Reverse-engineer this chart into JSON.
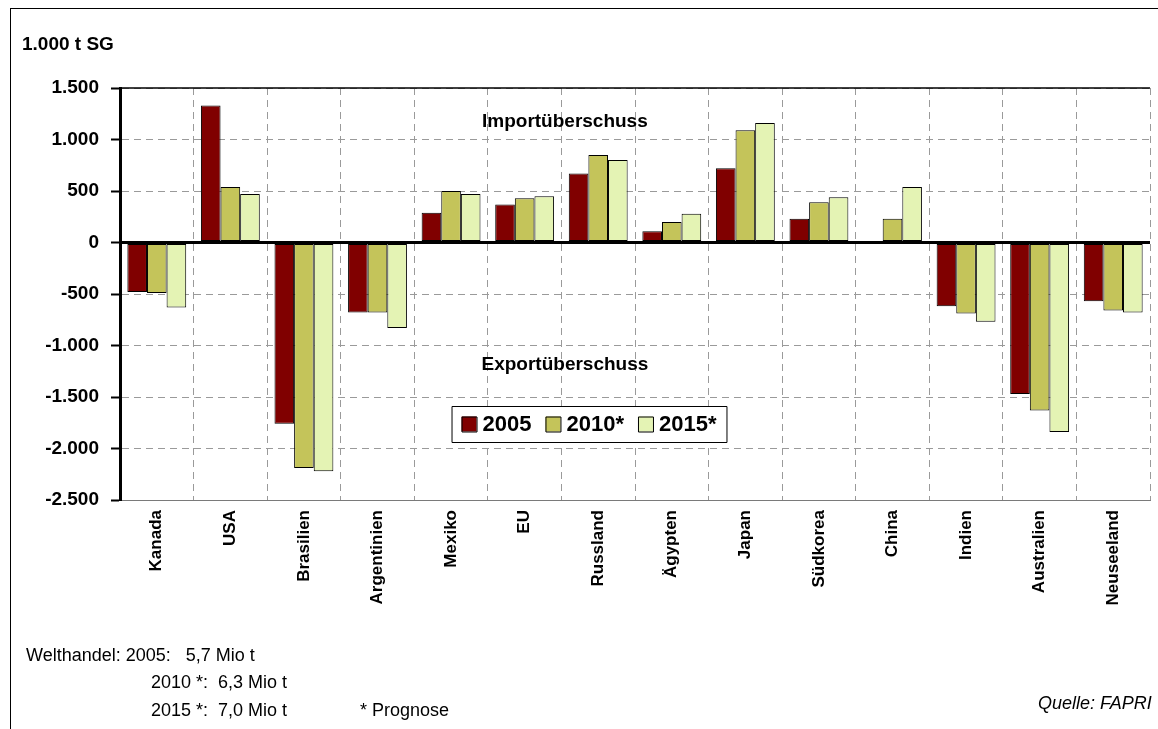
{
  "chart_data": {
    "type": "bar",
    "ylabel": "1.000 t SG",
    "categories": [
      "Kanada",
      "USA",
      "Brasilien",
      "Argentinien",
      "Mexiko",
      "EU",
      "Russland",
      "Ägypten",
      "Japan",
      "Südkorea",
      "China",
      "Indien",
      "Australien",
      "Neuseeland"
    ],
    "series": [
      {
        "name": "2005",
        "color": "#800000",
        "values": [
          -480,
          1330,
          -1760,
          -680,
          290,
          370,
          670,
          110,
          720,
          230,
          null,
          -620,
          -1470,
          -570
        ]
      },
      {
        "name": "2010*",
        "color": "#c4c45a",
        "values": [
          -490,
          540,
          -2190,
          -680,
          500,
          430,
          850,
          200,
          1090,
          390,
          230,
          -690,
          -1630,
          -660
        ]
      },
      {
        "name": "2015*",
        "color": "#e4f3b4",
        "values": [
          -630,
          470,
          -2220,
          -830,
          470,
          450,
          800,
          280,
          1160,
          440,
          540,
          -770,
          -1840,
          -680
        ]
      }
    ],
    "ylim": [
      -2500,
      1500
    ],
    "yticks": [
      {
        "value": -2500,
        "label": "-2.500"
      },
      {
        "value": -2000,
        "label": "-2.000"
      },
      {
        "value": -1500,
        "label": "-1.500"
      },
      {
        "value": -1000,
        "label": "-1.000"
      },
      -500,
      0,
      500,
      {
        "value": 1000,
        "label": "1.000"
      },
      {
        "value": 1500,
        "label": "1.500"
      }
    ],
    "grid": true,
    "legend": "bottom",
    "annotations": [
      "Importüberschuss",
      "Exportüberschuss",
      "Welthandel: 2005:   5,7 Mio t",
      "2010 *:  6,3 Mio t",
      "2015 *:  7,0 Mio t",
      "* Prognose",
      "Quelle: FAPRI"
    ]
  }
}
